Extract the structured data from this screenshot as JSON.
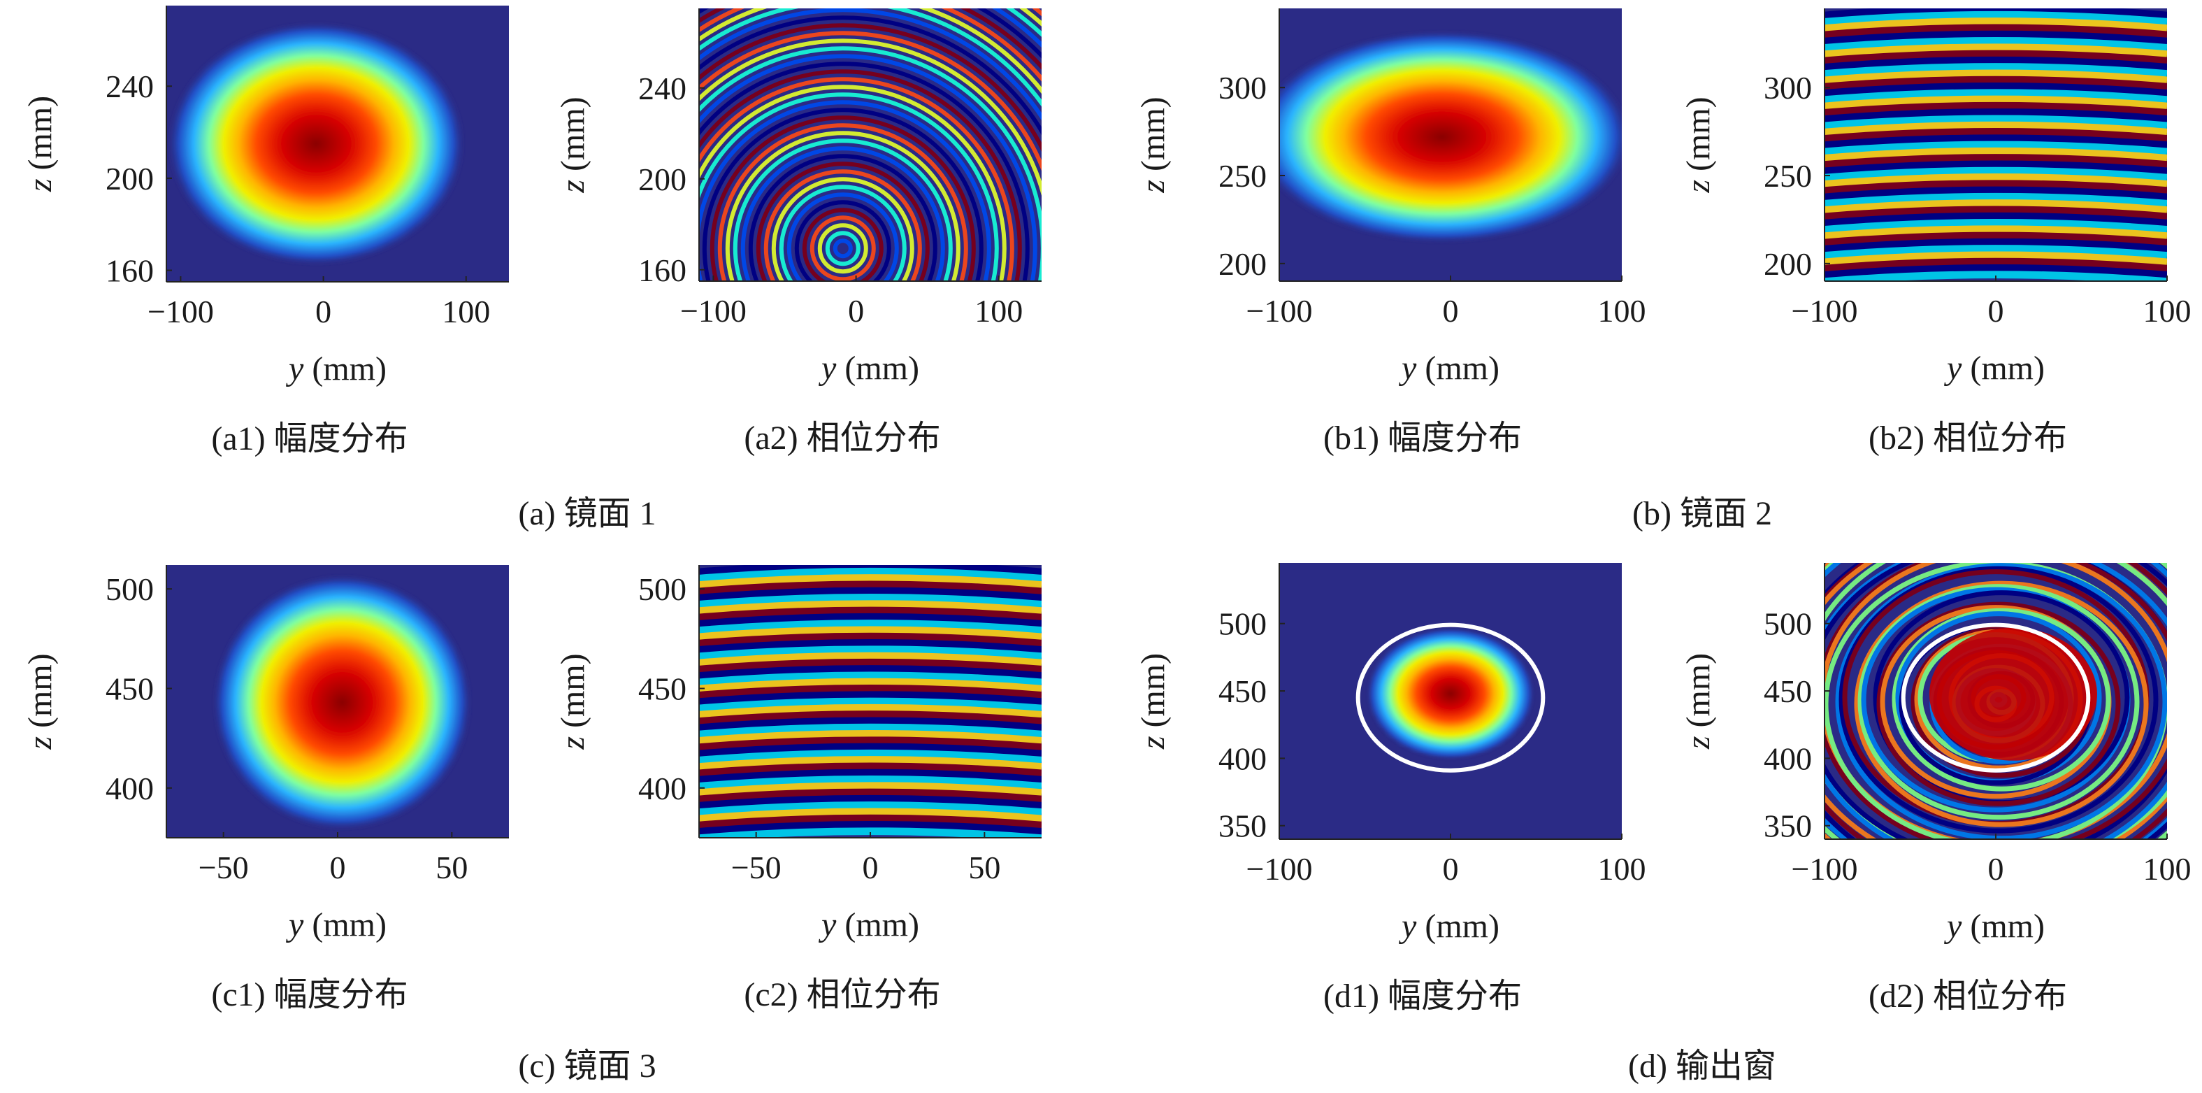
{
  "figure": {
    "groups": [
      {
        "caption": "(a) 镜面 1"
      },
      {
        "caption": "(b) 镜面 2"
      },
      {
        "caption": "(c) 镜面 3"
      },
      {
        "caption": "(d) 输出窗"
      }
    ]
  },
  "chart_data": [
    {
      "id": "a1",
      "type": "heatmap",
      "field": "amplitude",
      "caption": "(a1) 幅度分布",
      "xlabel": "y (mm)",
      "ylabel": "z (mm)",
      "xticks": [
        -100,
        0,
        100
      ],
      "yticks": [
        160,
        200,
        240
      ],
      "xlim": [
        -110,
        130
      ],
      "ylim": [
        155,
        275
      ],
      "beam_center": [
        -5,
        215
      ],
      "beam_radius": [
        55,
        28
      ],
      "ellipse_overlay": null
    },
    {
      "id": "a2",
      "type": "heatmap",
      "field": "phase",
      "caption": "(a2) 相位分布",
      "xlabel": "y (mm)",
      "ylabel": "z (mm)",
      "xticks": [
        -100,
        0,
        100
      ],
      "yticks": [
        160,
        200,
        240
      ],
      "xlim": [
        -110,
        130
      ],
      "ylim": [
        155,
        275
      ],
      "pattern": "curved_fringes",
      "ellipse_overlay": null
    },
    {
      "id": "b1",
      "type": "heatmap",
      "field": "amplitude",
      "caption": "(b1) 幅度分布",
      "xlabel": "y (mm)",
      "ylabel": "z (mm)",
      "xticks": [
        -100,
        0,
        100
      ],
      "yticks": [
        200,
        250,
        300
      ],
      "xlim": [
        -100,
        100
      ],
      "ylim": [
        190,
        345
      ],
      "beam_center": [
        -5,
        272
      ],
      "beam_radius": [
        58,
        32
      ],
      "ellipse_overlay": null
    },
    {
      "id": "b2",
      "type": "heatmap",
      "field": "phase",
      "caption": "(b2) 相位分布",
      "xlabel": "y (mm)",
      "ylabel": "z (mm)",
      "xticks": [
        -100,
        0,
        100
      ],
      "yticks": [
        200,
        250,
        300
      ],
      "xlim": [
        -100,
        100
      ],
      "ylim": [
        190,
        345
      ],
      "pattern": "horizontal_fringes",
      "ellipse_overlay": null
    },
    {
      "id": "c1",
      "type": "heatmap",
      "field": "amplitude",
      "caption": "(c1) 幅度分布",
      "xlabel": "y (mm)",
      "ylabel": "z (mm)",
      "xticks": [
        -50,
        0,
        50
      ],
      "yticks": [
        400,
        450,
        500
      ],
      "xlim": [
        -75,
        75
      ],
      "ylim": [
        375,
        512
      ],
      "beam_center": [
        2,
        443
      ],
      "beam_radius": [
        30,
        34
      ],
      "ellipse_overlay": null
    },
    {
      "id": "c2",
      "type": "heatmap",
      "field": "phase",
      "caption": "(c2) 相位分布",
      "xlabel": "y (mm)",
      "ylabel": "z (mm)",
      "xticks": [
        -50,
        0,
        50
      ],
      "yticks": [
        400,
        450,
        500
      ],
      "xlim": [
        -75,
        75
      ],
      "ylim": [
        375,
        512
      ],
      "pattern": "horizontal_fringes",
      "ellipse_overlay": null
    },
    {
      "id": "d1",
      "type": "heatmap",
      "field": "amplitude",
      "caption": "(d1) 幅度分布",
      "xlabel": "y (mm)",
      "ylabel": "z (mm)",
      "xticks": [
        -100,
        0,
        100
      ],
      "yticks": [
        350,
        400,
        450,
        500
      ],
      "xlim": [
        -100,
        100
      ],
      "ylim": [
        340,
        545
      ],
      "beam_center": [
        0,
        448
      ],
      "beam_radius": [
        26,
        26
      ],
      "ellipse_overlay": {
        "center": [
          0,
          445
        ],
        "radius": [
          54,
          54
        ]
      }
    },
    {
      "id": "d2",
      "type": "heatmap",
      "field": "phase",
      "caption": "(d2) 相位分布",
      "xlabel": "y (mm)",
      "ylabel": "z (mm)",
      "xticks": [
        -100,
        0,
        100
      ],
      "yticks": [
        350,
        400,
        450,
        500
      ],
      "xlim": [
        -100,
        100
      ],
      "ylim": [
        340,
        545
      ],
      "pattern": "concentric_noisy",
      "ellipse_overlay": {
        "center": [
          0,
          445
        ],
        "radius": [
          54,
          54
        ]
      }
    }
  ]
}
